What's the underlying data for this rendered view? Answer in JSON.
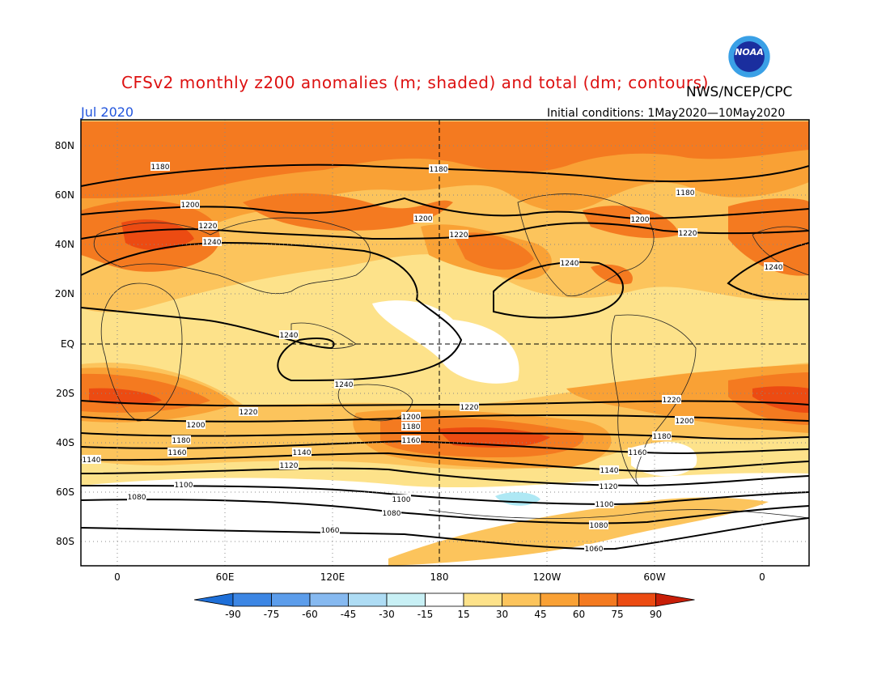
{
  "title": "CFSv2 monthly z200 anomalies (m; shaded) and total (dm; contours)",
  "agency": "NWS/NCEP/CPC",
  "logo_text": "NOAA",
  "month": "Jul 2020",
  "initial_conditions": "Initial conditions: 1May2020—10May2020",
  "lat_labels": [
    "80N",
    "60N",
    "40N",
    "20N",
    "EQ",
    "20S",
    "40S",
    "60S",
    "80S"
  ],
  "lon_labels": [
    "0",
    "60E",
    "120E",
    "180",
    "120W",
    "60W",
    "0"
  ],
  "colorbar": {
    "levels": [
      "-90",
      "-75",
      "-60",
      "-45",
      "-30",
      "-15",
      "15",
      "30",
      "45",
      "60",
      "75",
      "90"
    ],
    "colors": [
      "#1e6fd8",
      "#3c86e4",
      "#5c9deb",
      "#86b9f0",
      "#aedcf4",
      "#c8f0f5",
      "#ffffff",
      "#fde28a",
      "#fcc45c",
      "#f9a135",
      "#f47a20",
      "#ec4b12",
      "#c81e08"
    ]
  },
  "contour_labels": [
    "1180",
    "1200",
    "1220",
    "1240",
    "1160",
    "1140",
    "1120",
    "1100",
    "1080",
    "1060"
  ],
  "anomaly_colors": {
    "c15": "#fde28a",
    "c30": "#fcc45c",
    "c45": "#f9a135",
    "c60": "#f47a20",
    "c75": "#ec4b12",
    "c_neg": "#aee8f4"
  }
}
